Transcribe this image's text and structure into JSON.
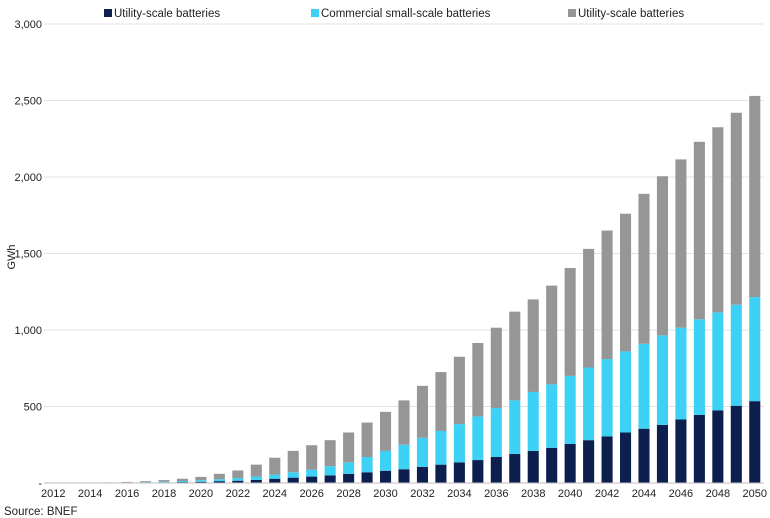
{
  "chart_data": {
    "type": "bar",
    "stacked": true,
    "title": "",
    "xlabel": "",
    "ylabel": "GWh",
    "ylim": [
      0,
      3000
    ],
    "yticks": [
      0,
      500,
      1000,
      1500,
      2000,
      2500,
      3000
    ],
    "ytick_labels": [
      "-",
      "500",
      "1,000",
      "1,500",
      "2,000",
      "2,500",
      "3,000"
    ],
    "grid": true,
    "legend_position": "top",
    "source": "Source: BNEF",
    "categories": [
      "2012",
      "2013",
      "2014",
      "2015",
      "2016",
      "2017",
      "2018",
      "2019",
      "2020",
      "2021",
      "2022",
      "2023",
      "2024",
      "2025",
      "2026",
      "2027",
      "2028",
      "2029",
      "2030",
      "2031",
      "2032",
      "2033",
      "2034",
      "2035",
      "2036",
      "2037",
      "2038",
      "2039",
      "2040",
      "2041",
      "2042",
      "2043",
      "2044",
      "2045",
      "2046",
      "2047",
      "2048",
      "2049",
      "2050"
    ],
    "xtick_labels": [
      "2012",
      "2014",
      "2016",
      "2018",
      "2020",
      "2022",
      "2024",
      "2026",
      "2028",
      "2030",
      "2032",
      "2034",
      "2036",
      "2038",
      "2040",
      "2042",
      "2044",
      "2046",
      "2048",
      "2050"
    ],
    "series": [
      {
        "name": "Utility-scale batteries",
        "color": "#0d1f4f",
        "values": [
          0,
          0,
          0,
          1,
          2,
          3,
          4,
          6,
          8,
          12,
          15,
          20,
          28,
          35,
          42,
          50,
          60,
          70,
          80,
          90,
          105,
          120,
          135,
          150,
          170,
          190,
          210,
          230,
          255,
          280,
          305,
          330,
          355,
          380,
          415,
          445,
          475,
          505,
          535
        ]
      },
      {
        "name": "Commercial small-scale batteries",
        "color": "#3dd1f5",
        "values": [
          0,
          0,
          0,
          1,
          2,
          3,
          5,
          7,
          10,
          13,
          17,
          22,
          27,
          35,
          45,
          60,
          75,
          100,
          130,
          160,
          190,
          220,
          250,
          285,
          320,
          350,
          385,
          415,
          445,
          475,
          505,
          530,
          555,
          585,
          600,
          625,
          640,
          660,
          680
        ]
      },
      {
        "name": "Utility-scale batteries",
        "color": "#969696",
        "values": [
          0,
          0,
          1,
          2,
          3,
          6,
          10,
          15,
          22,
          35,
          50,
          78,
          110,
          140,
          160,
          170,
          195,
          225,
          255,
          290,
          340,
          385,
          440,
          480,
          525,
          580,
          605,
          645,
          705,
          775,
          840,
          900,
          980,
          1040,
          1100,
          1160,
          1210,
          1255,
          1315
        ]
      }
    ]
  }
}
